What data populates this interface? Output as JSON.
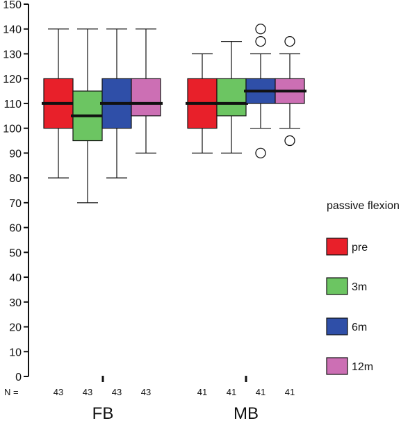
{
  "chart_data": {
    "type": "boxplot",
    "title": "",
    "xlabel": "",
    "ylabel": "",
    "ylim": [
      0,
      150
    ],
    "yticks": [
      0,
      10,
      20,
      30,
      40,
      50,
      60,
      70,
      80,
      90,
      100,
      110,
      120,
      130,
      140,
      150
    ],
    "grid": false,
    "n_prefix": "N =",
    "legend": {
      "title": "passive flexion",
      "placement": "right",
      "entries": [
        {
          "name": "pre",
          "color": "#e8202a"
        },
        {
          "name": "3m",
          "color": "#6cc562"
        },
        {
          "name": "6m",
          "color": "#2f4fa8"
        },
        {
          "name": "12m",
          "color": "#cc6fb4"
        }
      ]
    },
    "groups": [
      {
        "name": "FB",
        "boxes": [
          {
            "series": "pre",
            "n": "43",
            "whisker_low": 80,
            "q1": 100,
            "median": 110,
            "q3": 120,
            "whisker_high": 140,
            "outliers": []
          },
          {
            "series": "3m",
            "n": "43",
            "whisker_low": 70,
            "q1": 95,
            "median": 105,
            "q3": 115,
            "whisker_high": 140,
            "outliers": []
          },
          {
            "series": "6m",
            "n": "43",
            "whisker_low": 80,
            "q1": 100,
            "median": 110,
            "q3": 120,
            "whisker_high": 140,
            "outliers": []
          },
          {
            "series": "12m",
            "n": "43",
            "whisker_low": 90,
            "q1": 105,
            "median": 110,
            "q3": 120,
            "whisker_high": 140,
            "outliers": []
          }
        ]
      },
      {
        "name": "MB",
        "boxes": [
          {
            "series": "pre",
            "n": "41",
            "whisker_low": 90,
            "q1": 100,
            "median": 110,
            "q3": 120,
            "whisker_high": 130,
            "outliers": []
          },
          {
            "series": "3m",
            "n": "41",
            "whisker_low": 90,
            "q1": 105,
            "median": 110,
            "q3": 120,
            "whisker_high": 135,
            "outliers": []
          },
          {
            "series": "6m",
            "n": "41",
            "whisker_low": 100,
            "q1": 110,
            "median": 115,
            "q3": 120,
            "whisker_high": 130,
            "outliers": [
              90,
              135,
              140
            ]
          },
          {
            "series": "12m",
            "n": "41",
            "whisker_low": 100,
            "q1": 110,
            "median": 115,
            "q3": 120,
            "whisker_high": 130,
            "outliers": [
              95,
              135
            ]
          }
        ]
      }
    ]
  }
}
